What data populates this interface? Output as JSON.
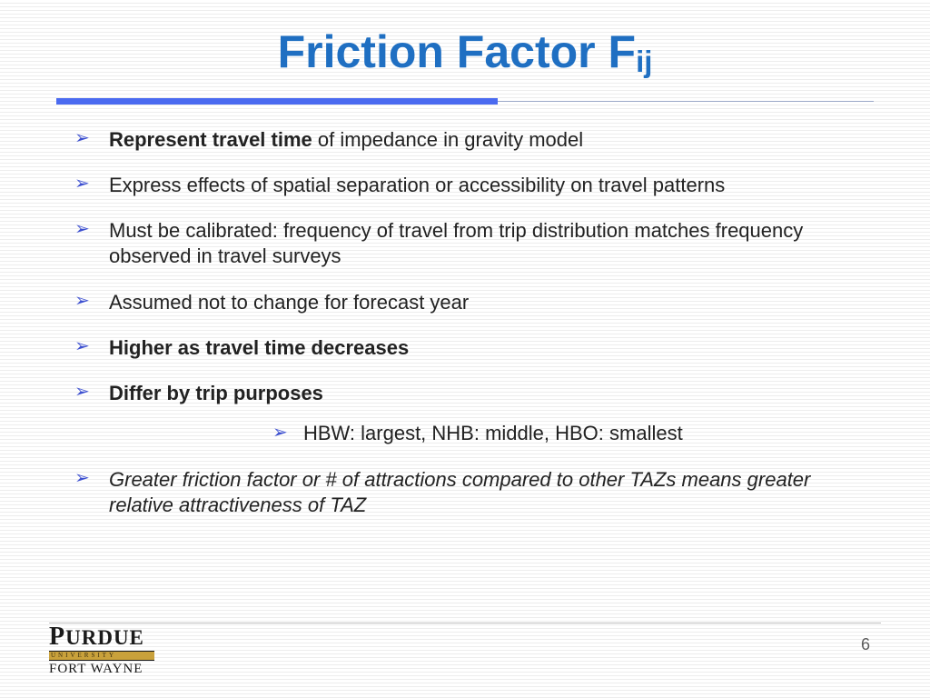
{
  "title_main": "Friction Factor F",
  "title_sub": "ij",
  "title_color": "#1f6fc2",
  "title_fontsize": 50,
  "rule_thick_color": "#4a6af0",
  "rule_thin_color": "#9aa7c7",
  "bullet_color": "#3c4fd0",
  "body_fontsize": 22,
  "bullets": {
    "b1_bold": "Represent travel time",
    "b1_rest": " of impedance in gravity model",
    "b2": "Express effects of spatial separation or accessibility on travel patterns",
    "b3": "Must be calibrated: frequency of travel from trip distribution matches frequency observed in travel surveys",
    "b4": "Assumed not to change for forecast year",
    "b5": "Higher as travel time decreases",
    "b6": "Differ by trip purposes",
    "b6_sub": "HBW: largest, NHB: middle, HBO: smallest",
    "b7": "Greater friction factor or # of attractions compared to other TAZs means greater relative attractiveness of TAZ"
  },
  "page_number": "6",
  "logo": {
    "line1": "PURDUE",
    "line2": "UNIVERSITY",
    "line3": "FORT WAYNE",
    "gold": "#c9a13b"
  },
  "background_stripe": "#ededed"
}
